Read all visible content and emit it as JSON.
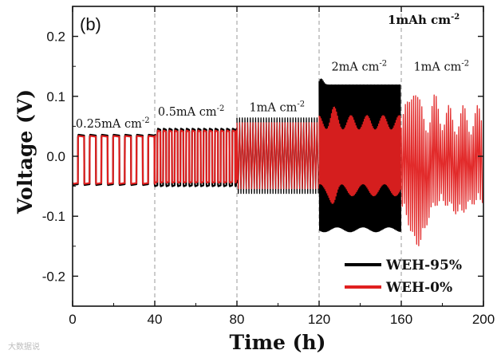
{
  "chart_data": {
    "type": "line",
    "panel_label": "(b)",
    "xlabel": "Time (h)",
    "ylabel": "Voltage (V)",
    "xlim": [
      0,
      200
    ],
    "ylim": [
      -0.25,
      0.25
    ],
    "x_ticks": [
      0,
      40,
      80,
      120,
      160,
      200
    ],
    "x_tick_labels": [
      "0",
      "40",
      "80",
      "120",
      "160",
      "200"
    ],
    "y_ticks": [
      -0.2,
      -0.1,
      0.0,
      0.1,
      0.2
    ],
    "y_tick_labels": [
      "-0.2",
      "-0.1",
      "0.0",
      "0.1",
      "0.2"
    ],
    "stage_boundaries_h": [
      0,
      40,
      80,
      120,
      160,
      200
    ],
    "capacity_label": "1mAh cm",
    "capacity_label_sup": "-2",
    "annotations": [
      {
        "text": "0.25mA cm",
        "sup": "-2",
        "x_h": 1.5,
        "y_v": 0.048
      },
      {
        "text": "0.5mA cm",
        "sup": "-2",
        "x_h": 41.5,
        "y_v": 0.068
      },
      {
        "text": "1mA cm",
        "sup": "-2",
        "x_h": 86,
        "y_v": 0.075
      },
      {
        "text": "2mA cm",
        "sup": "-2",
        "x_h": 126,
        "y_v": 0.143
      },
      {
        "text": "1mA cm",
        "sup": "-2",
        "x_h": 166,
        "y_v": 0.143
      }
    ],
    "series": [
      {
        "name": "WEH-95%",
        "color": "#000000",
        "segments": [
          {
            "t0": 0,
            "t1": 40,
            "amp": 0.036,
            "neg_amp": 0.048,
            "period_h": 5.7,
            "style": "square"
          },
          {
            "t0": 40,
            "t1": 80,
            "amp": 0.046,
            "neg_amp": 0.05,
            "period_h": 2.8,
            "style": "square"
          },
          {
            "t0": 80,
            "t1": 120,
            "amp": 0.064,
            "neg_amp": 0.062,
            "period_h": 1.3,
            "style": "dense"
          },
          {
            "t0": 120,
            "t1": 160,
            "amp": 0.119,
            "neg_amp": 0.122,
            "period_h": 0.5,
            "style": "dense"
          }
        ]
      },
      {
        "name": "WEH-0%",
        "color": "#e02020",
        "segments": [
          {
            "t0": 0,
            "t1": 40,
            "amp": 0.034,
            "neg_amp": 0.046,
            "period_h": 5.7,
            "style": "square"
          },
          {
            "t0": 40,
            "t1": 80,
            "amp": 0.043,
            "neg_amp": 0.044,
            "period_h": 2.8,
            "style": "square"
          },
          {
            "t0": 80,
            "t1": 120,
            "amp": 0.056,
            "neg_amp": 0.054,
            "period_h": 1.3,
            "style": "dense"
          },
          {
            "t0": 120,
            "t1": 160,
            "amp": 0.056,
            "neg_amp": 0.056,
            "period_h": 0.5,
            "style": "dense"
          },
          {
            "t0": 160,
            "t1": 200,
            "amp": 0.06,
            "neg_amp": 0.06,
            "peak_pos": 0.125,
            "peak_neg": -0.132,
            "period_h": 1.0,
            "style": "dense"
          }
        ]
      }
    ],
    "legend": {
      "placement": "bottom-right",
      "entries": [
        {
          "label": "WEH-95%",
          "color": "#000000"
        },
        {
          "label": "WEH-0%",
          "color": "#e02020"
        }
      ]
    },
    "grid": false
  },
  "watermark_text": "大数据说"
}
